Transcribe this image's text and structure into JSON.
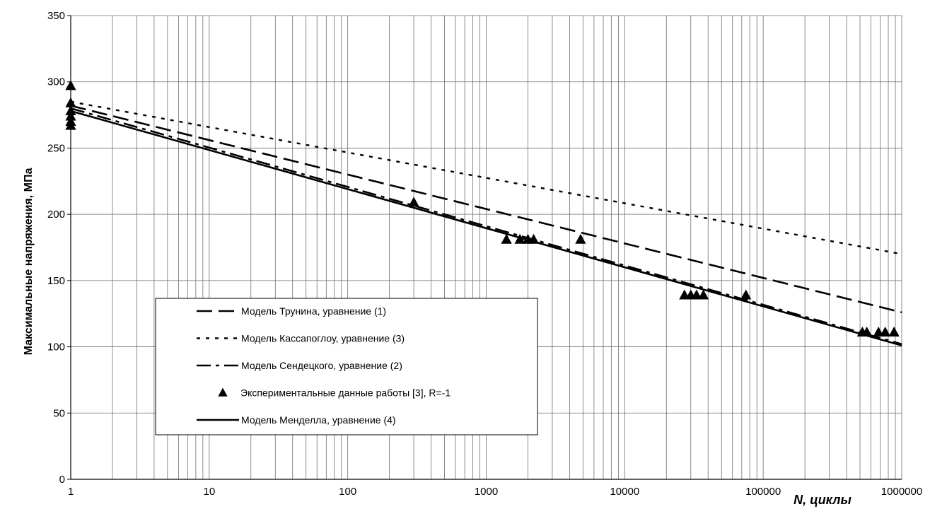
{
  "chart_data": {
    "type": "line",
    "xlabel": "N, циклы",
    "ylabel": "Максимальные напряжения, МПа",
    "xscale": "log",
    "xlim": [
      1,
      1000000
    ],
    "ylim": [
      0,
      350
    ],
    "x_ticks": [
      "1",
      "10",
      "100",
      "1000",
      "10000",
      "100000",
      "1000000"
    ],
    "y_ticks": [
      "0",
      "50",
      "100",
      "150",
      "200",
      "250",
      "300",
      "350"
    ],
    "grid": true,
    "legend_position": "lower-left",
    "series": [
      {
        "name": "Модель Трунина, уравнение (1)",
        "style": "long-dash",
        "color": "#000000",
        "points": [
          [
            1,
            282
          ],
          [
            1000000,
            126
          ]
        ]
      },
      {
        "name": "Модель Кассапоглоу, уравнение (3)",
        "style": "dotted",
        "color": "#000000",
        "points": [
          [
            1,
            285
          ],
          [
            1000000,
            170
          ]
        ]
      },
      {
        "name": "Модель Сендецкого, уравнение (2)",
        "style": "dash-dot",
        "color": "#000000",
        "points": [
          [
            1,
            280
          ],
          [
            1000000,
            102
          ]
        ]
      },
      {
        "name": "Экспериментальные данные  работы [3], R=-1",
        "style": "markers",
        "marker": "triangle",
        "color": "#000000",
        "points": [
          [
            1,
            297
          ],
          [
            1,
            284
          ],
          [
            1,
            278
          ],
          [
            1,
            274
          ],
          [
            1,
            270
          ],
          [
            1,
            267
          ],
          [
            300,
            209
          ],
          [
            1400,
            181
          ],
          [
            1750,
            181
          ],
          [
            2000,
            181
          ],
          [
            2200,
            181
          ],
          [
            4800,
            181
          ],
          [
            27000,
            139
          ],
          [
            30000,
            139
          ],
          [
            33000,
            139
          ],
          [
            37000,
            139
          ],
          [
            75000,
            139
          ],
          [
            520000,
            111
          ],
          [
            560000,
            111
          ],
          [
            680000,
            111
          ],
          [
            760000,
            111
          ],
          [
            880000,
            111
          ]
        ]
      },
      {
        "name": "Модель Менделла, уравнение (4)",
        "style": "solid",
        "color": "#000000",
        "points": [
          [
            1,
            278
          ],
          [
            1000000,
            101
          ]
        ]
      }
    ]
  }
}
